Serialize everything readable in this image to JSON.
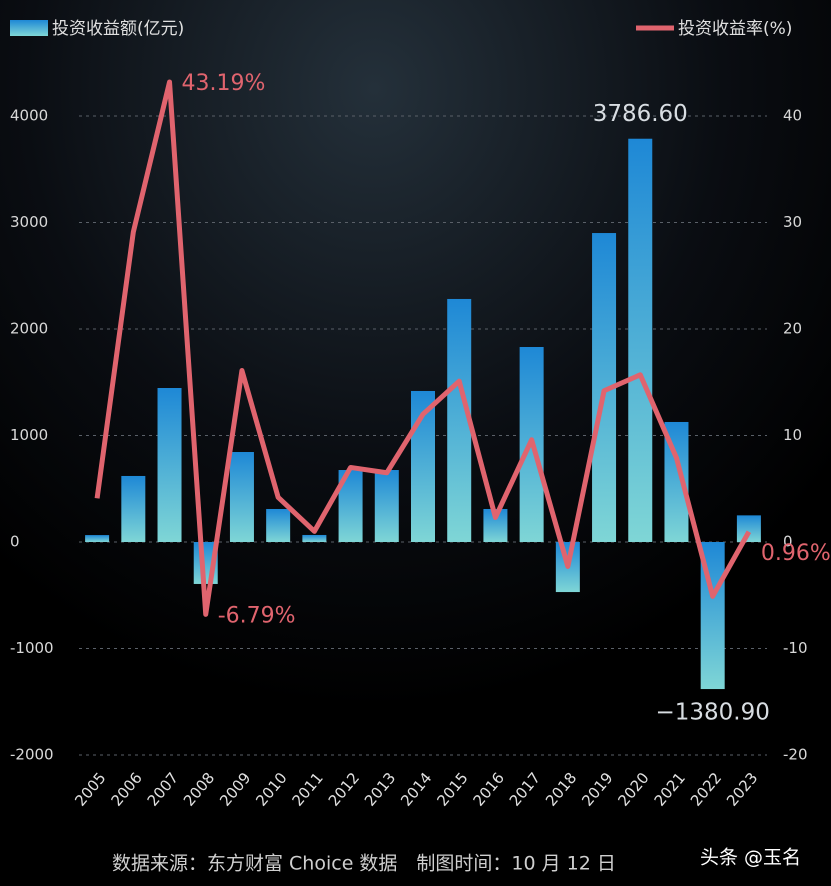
{
  "chart_data": {
    "type": "bar-line",
    "categories": [
      "2005",
      "2006",
      "2007",
      "2008",
      "2009",
      "2010",
      "2011",
      "2012",
      "2013",
      "2014",
      "2015",
      "2016",
      "2017",
      "2018",
      "2019",
      "2020",
      "2021",
      "2022",
      "2023"
    ],
    "series": [
      {
        "name": "投资收益额(亿元)",
        "type": "bar",
        "color": "#1e88d6",
        "values": [
          65,
          620,
          1446,
          -394,
          845,
          310,
          66,
          676,
          676,
          1418,
          2282,
          310,
          1831,
          -470,
          2901,
          3786.6,
          1127,
          -1380.9,
          250.11
        ],
        "value_labels": [
          null,
          null,
          null,
          null,
          null,
          null,
          null,
          null,
          null,
          null,
          null,
          null,
          null,
          null,
          null,
          "3786.60",
          null,
          "−1380.90",
          null
        ]
      },
      {
        "name": "投资收益率(%)",
        "type": "line",
        "axis": "y2",
        "color": "#e0646e",
        "values": [
          4.1,
          29.1,
          43.19,
          -6.79,
          16.1,
          4.2,
          1.0,
          7.0,
          6.5,
          12.0,
          15.1,
          2.3,
          9.6,
          -2.3,
          14.2,
          15.7,
          7.9,
          -5.1,
          0.96
        ],
        "value_labels": [
          null,
          null,
          "43.19%",
          "-6.79%",
          null,
          null,
          null,
          null,
          null,
          null,
          null,
          null,
          null,
          null,
          null,
          null,
          null,
          null,
          "0.96%"
        ]
      }
    ],
    "ylim": [
      -2000,
      4000
    ],
    "yticks": [
      -2000,
      -1000,
      0,
      1000,
      2000,
      3000,
      4000
    ],
    "y2lim": [
      -20,
      40
    ],
    "y2ticks": [
      -20,
      -10,
      0,
      10,
      20,
      30,
      40
    ],
    "grid": true,
    "source": "数据来源：东方财富 Choice 数据　制图时间：10 月 12 日",
    "watermark": "头条 @玉名"
  }
}
